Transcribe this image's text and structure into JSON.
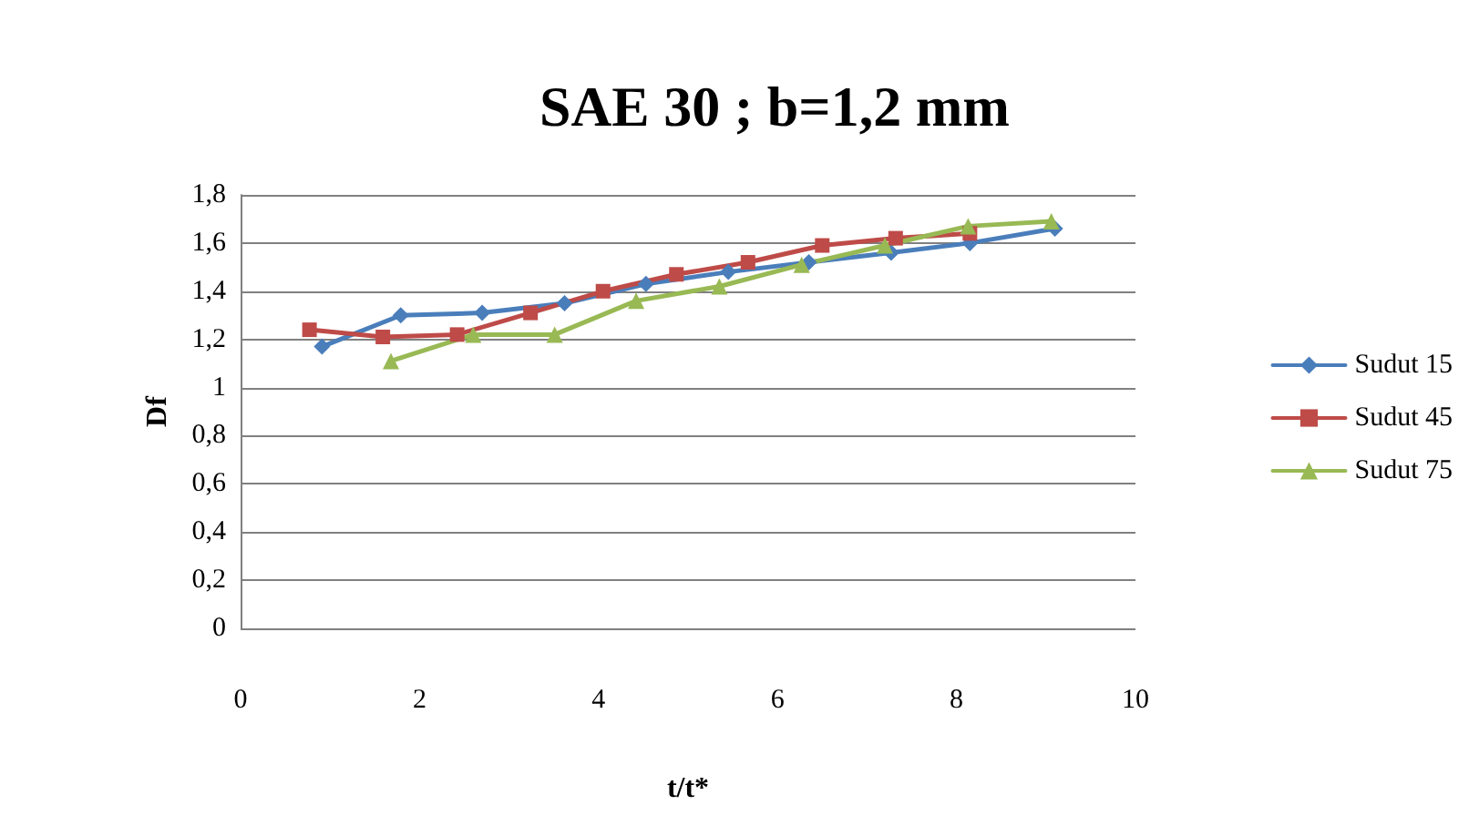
{
  "chart_data": {
    "type": "line",
    "title": "SAE 30 ; b=1,2 mm",
    "xlabel": "t/t*",
    "ylabel": "Df",
    "xlim": [
      0,
      10
    ],
    "xticks": [
      0,
      2,
      4,
      6,
      8,
      10
    ],
    "ylim": [
      0,
      1.8
    ],
    "yticks": [
      {
        "value": 0,
        "label": "0"
      },
      {
        "value": 0.2,
        "label": "0,2"
      },
      {
        "value": 0.4,
        "label": "0,4"
      },
      {
        "value": 0.6,
        "label": "0,6"
      },
      {
        "value": 0.8,
        "label": "0,8"
      },
      {
        "value": 1,
        "label": "1"
      },
      {
        "value": 1.2,
        "label": "1,2"
      },
      {
        "value": 1.4,
        "label": "1,4"
      },
      {
        "value": 1.6,
        "label": "1,6"
      },
      {
        "value": 1.8,
        "label": "1,8"
      }
    ],
    "grid": "y",
    "legend": "right",
    "series": [
      {
        "name": "Sudut 15",
        "color": "#4a7ebb",
        "marker": "diamond",
        "x": [
          0.91,
          1.79,
          2.7,
          3.62,
          4.53,
          5.45,
          6.35,
          7.27,
          8.15,
          9.1
        ],
        "values": [
          1.17,
          1.3,
          1.31,
          1.35,
          1.43,
          1.48,
          1.52,
          1.56,
          1.6,
          1.66
        ]
      },
      {
        "name": "Sudut 45",
        "color": "#be4b48",
        "marker": "square",
        "x": [
          0.77,
          1.59,
          2.42,
          3.24,
          4.05,
          4.87,
          5.67,
          6.5,
          7.32,
          8.15
        ],
        "values": [
          1.24,
          1.21,
          1.22,
          1.31,
          1.4,
          1.47,
          1.52,
          1.59,
          1.62,
          1.64
        ]
      },
      {
        "name": "Sudut 75",
        "color": "#98b954",
        "marker": "triangle",
        "x": [
          1.68,
          2.6,
          3.51,
          4.42,
          5.35,
          6.27,
          7.2,
          8.13,
          9.06
        ],
        "values": [
          1.11,
          1.22,
          1.22,
          1.36,
          1.42,
          1.51,
          1.59,
          1.67,
          1.69
        ]
      }
    ]
  }
}
